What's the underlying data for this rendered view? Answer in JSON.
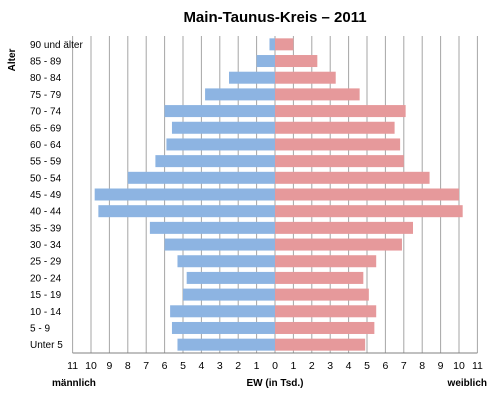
{
  "chart_data": {
    "type": "bar",
    "orientation": "horizontal-pyramid",
    "title": "Main-Taunus-Kreis – 2011",
    "ylabel": "Alter",
    "xlabel": "EW (in Tsd.)",
    "left_label": "männlich",
    "right_label": "weiblich",
    "xlim": [
      0,
      11
    ],
    "ticks": [
      11,
      10,
      9,
      8,
      7,
      6,
      5,
      4,
      3,
      2,
      1,
      0,
      1,
      2,
      3,
      4,
      5,
      6,
      7,
      8,
      9,
      10,
      11
    ],
    "grid": true,
    "categories": [
      "90 und älter",
      "85 - 89",
      "80 - 84",
      "75 - 79",
      "70 - 74",
      "65 - 69",
      "60 - 64",
      "55 - 59",
      "50 - 54",
      "45 - 49",
      "40 - 44",
      "35 - 39",
      "30 - 34",
      "25 - 29",
      "20 - 24",
      "15 - 19",
      "10 - 14",
      "5 - 9",
      "Unter 5"
    ],
    "series": [
      {
        "name": "männlich",
        "color": "#8db4e2",
        "values": [
          0.3,
          1.0,
          2.5,
          3.8,
          6.0,
          5.6,
          5.9,
          6.5,
          8.0,
          9.8,
          9.6,
          6.8,
          6.0,
          5.3,
          4.8,
          5.0,
          5.7,
          5.6,
          5.3
        ]
      },
      {
        "name": "weiblich",
        "color": "#e6999b",
        "values": [
          1.0,
          2.3,
          3.3,
          4.6,
          7.1,
          6.5,
          6.8,
          7.0,
          8.4,
          10.0,
          10.2,
          7.5,
          6.9,
          5.5,
          4.8,
          5.1,
          5.5,
          5.4,
          4.9
        ]
      }
    ]
  }
}
